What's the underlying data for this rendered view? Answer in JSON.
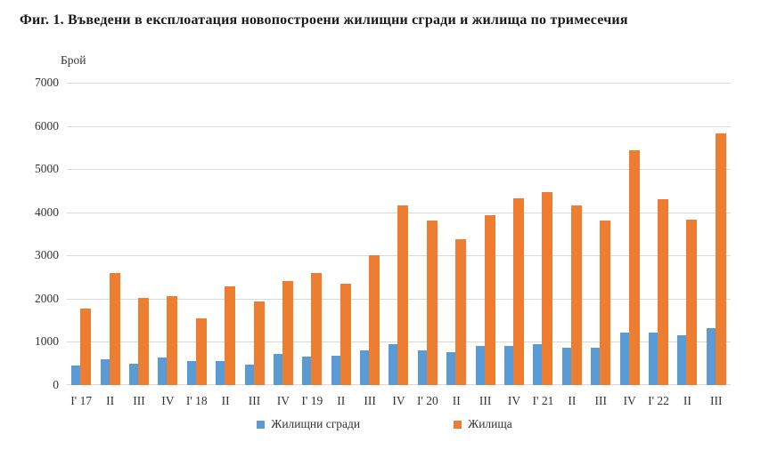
{
  "title": "Фиг. 1. Въведени в експлоатация новопостроени жилищни сгради и жилища по тримесечия",
  "colors": {
    "buildings": "#5B9BD5",
    "dwellings": "#ED7D31",
    "gridline": "#D9D9D9",
    "text": "#333333"
  },
  "chart_data": {
    "type": "bar",
    "title": "Фиг. 1. Въведени в експлоатация новопостроени жилищни сгради и жилища по тримесечия",
    "xlabel": "",
    "ylabel": "Брой",
    "ylim": [
      0,
      7000
    ],
    "yticks": [
      0,
      1000,
      2000,
      3000,
      4000,
      5000,
      6000,
      7000
    ],
    "grid": "horizontal",
    "legend_position": "bottom",
    "categories": [
      "I' 17",
      "II",
      "III",
      "IV",
      "I' 18",
      "II",
      "III",
      "IV",
      "I' 19",
      "II",
      "III",
      "IV",
      "I' 20",
      "II",
      "III",
      "IV",
      "I' 21",
      "II",
      "III",
      "IV",
      "I' 22",
      "II",
      "III"
    ],
    "series": [
      {
        "name": "Жилищни сгради",
        "color": "#5B9BD5",
        "values": [
          460,
          590,
          490,
          640,
          560,
          560,
          470,
          720,
          660,
          680,
          800,
          950,
          800,
          760,
          900,
          910,
          940,
          870,
          860,
          1210,
          1210,
          1150,
          1310
        ]
      },
      {
        "name": "Жилища",
        "color": "#ED7D31",
        "values": [
          1770,
          2590,
          2020,
          2050,
          1540,
          2290,
          1930,
          2400,
          2600,
          2350,
          3000,
          4170,
          3810,
          3380,
          3940,
          4330,
          4470,
          4170,
          3820,
          5430,
          4300,
          3830,
          5820
        ]
      }
    ]
  }
}
